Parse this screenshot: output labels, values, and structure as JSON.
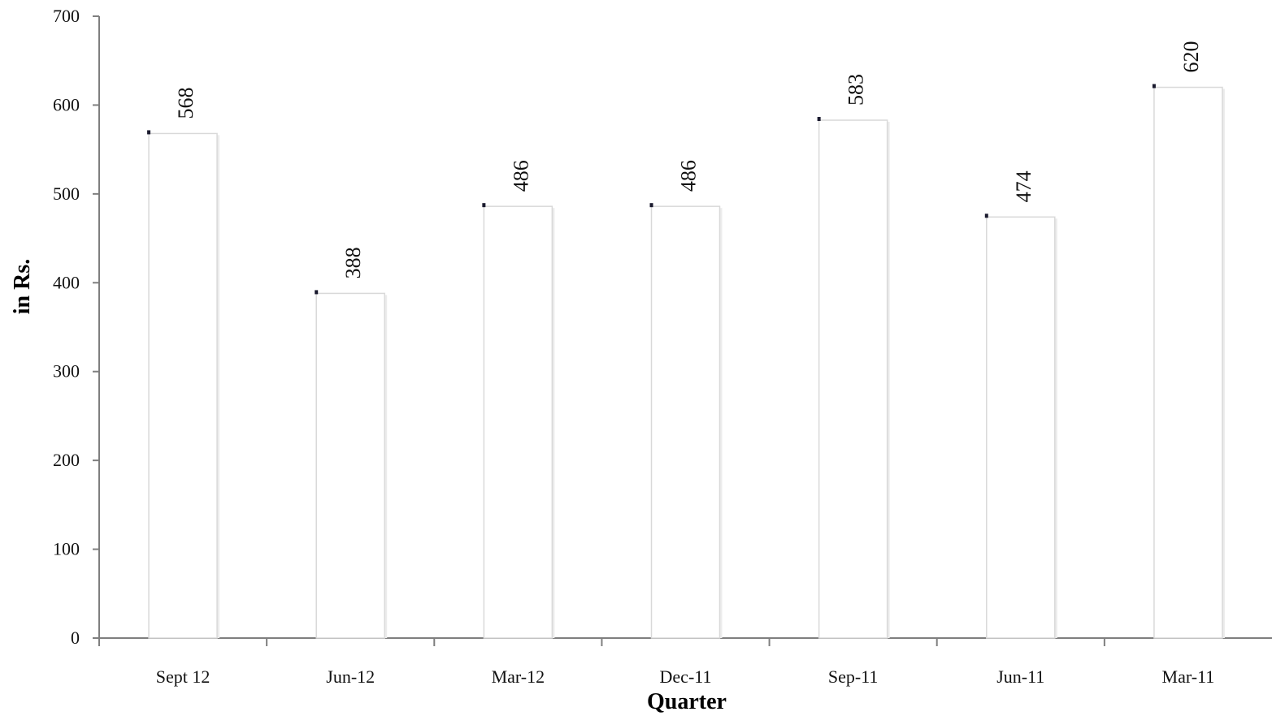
{
  "chart_data": {
    "type": "bar",
    "categories": [
      "Sept 12",
      "Jun-12",
      "Mar-12",
      "Dec-11",
      "Sep-11",
      "Jun-11",
      "Mar-11"
    ],
    "values": [
      568,
      388,
      486,
      486,
      583,
      474,
      620
    ],
    "title": "",
    "xlabel": "Quarter",
    "ylabel": "in Rs.",
    "ylim": [
      0,
      700
    ],
    "yticks": [
      0,
      100,
      200,
      300,
      400,
      500,
      600,
      700
    ],
    "grid": false,
    "legend": "none",
    "data_labels": true,
    "bar_fill": "#ffffff",
    "bar_stroke": "#d9d9d9",
    "axis_color": "#7f7f7f"
  }
}
